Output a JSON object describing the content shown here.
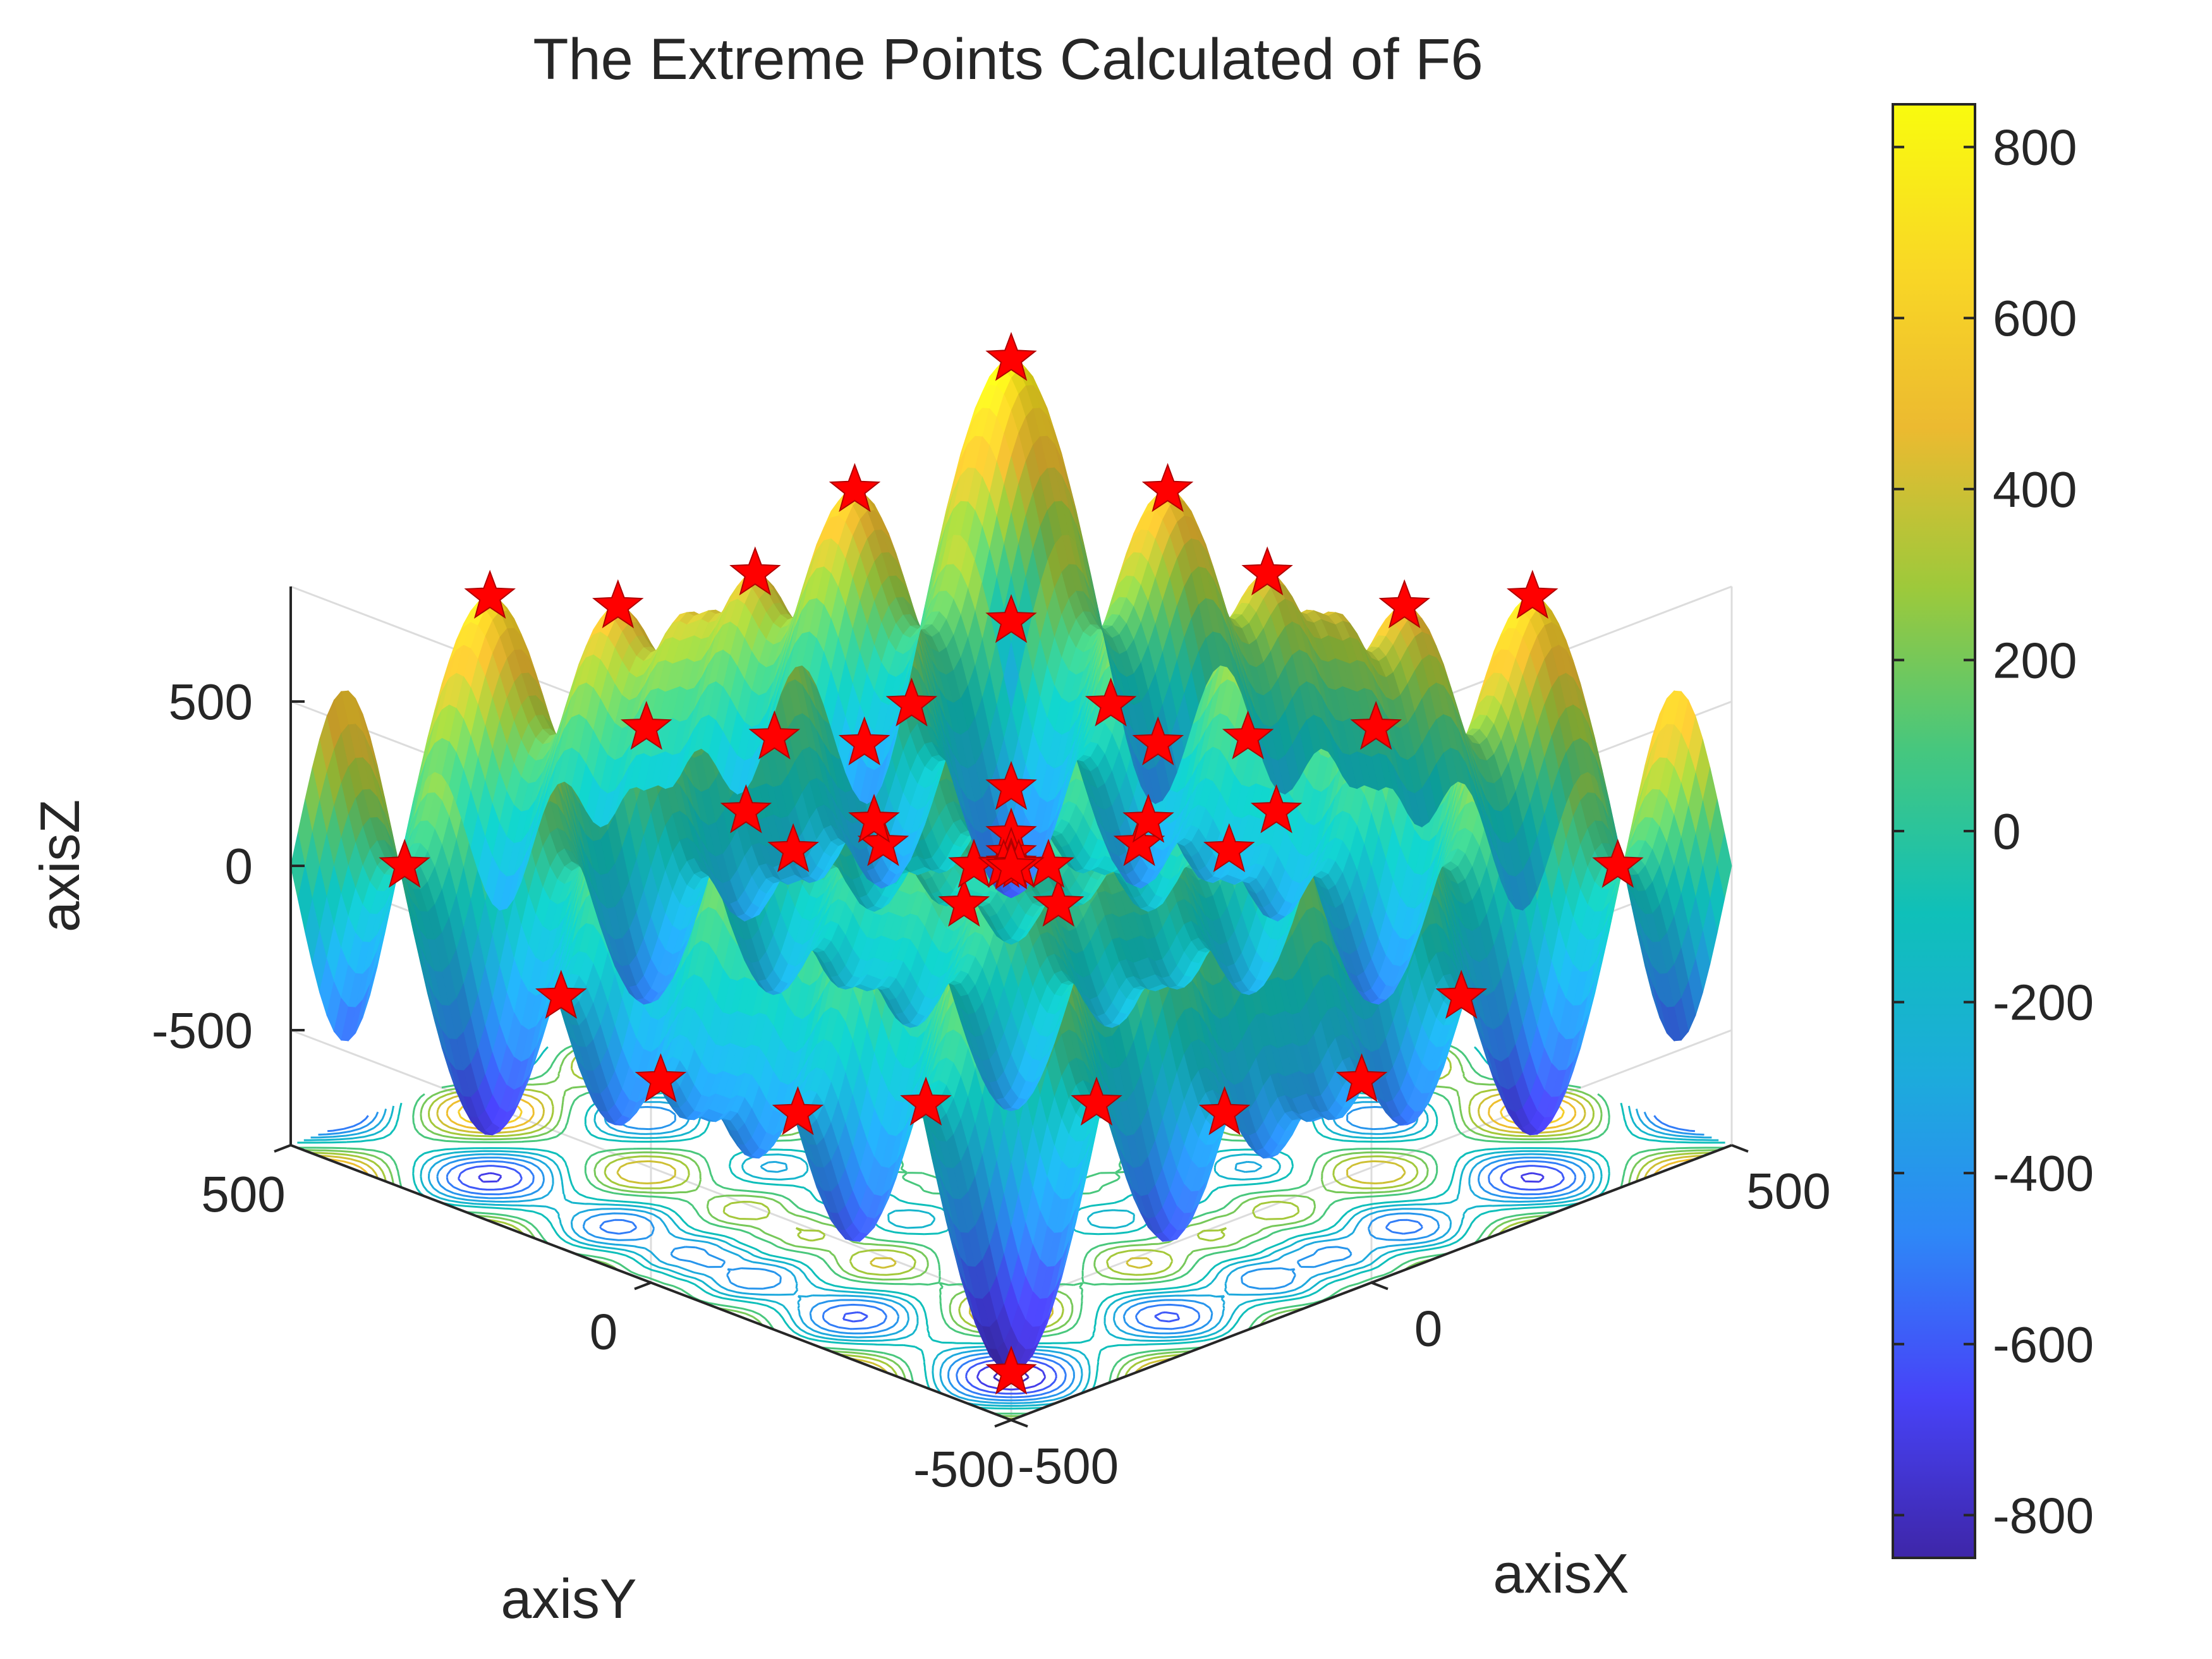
{
  "chart_data": {
    "type": "surface3d",
    "title": "The Extreme Points Calculated of F6",
    "xlabel": "axisX",
    "ylabel": "axisY",
    "zlabel": "axisZ",
    "xlim": [
      -500,
      500
    ],
    "ylim": [
      -500,
      500
    ],
    "zlim": [
      -850,
      850
    ],
    "x_ticks": [
      -500,
      0,
      500
    ],
    "y_ticks": [
      -500,
      0,
      500
    ],
    "z_ticks": [
      -500,
      0,
      500
    ],
    "x_tick_labels": [
      "-500",
      "0",
      "500"
    ],
    "y_tick_labels": [
      "-500",
      "0",
      "500"
    ],
    "z_tick_labels": [
      "-500",
      "0",
      "500"
    ],
    "colorbar": {
      "range": [
        -850,
        850
      ],
      "ticks": [
        -800,
        -600,
        -400,
        -200,
        0,
        200,
        400,
        600,
        800
      ],
      "tick_labels": [
        "-800",
        "-600",
        "-400",
        "-200",
        "0",
        "200",
        "400",
        "600",
        "800"
      ],
      "colormap": "parula",
      "colors": [
        "#3e26a8",
        "#4743f8",
        "#2e87f7",
        "#1cacdb",
        "#0fc0b9",
        "#46c77e",
        "#9dc93b",
        "#ecba30",
        "#f9d825",
        "#f9fb0e"
      ]
    },
    "surface": {
      "function": "F6 (Schwefel-type): z = x*sin(sqrt(|x|)) + y*sin(sqrt(|y|))",
      "grid": "on",
      "contour_projection": "on"
    },
    "marker": {
      "symbol": "pentagram",
      "color": "#ff0000",
      "name": "extreme-points"
    },
    "extreme_points": [
      [
        -420.97,
        -420.97
      ],
      [
        -420.97,
        -302.52
      ],
      [
        -420.97,
        -124.83
      ],
      [
        -420.97,
        65.55
      ],
      [
        -420.97,
        203.81
      ],
      [
        -420.97,
        420.97
      ],
      [
        -302.52,
        -420.97
      ],
      [
        -302.52,
        -302.52
      ],
      [
        -302.52,
        -124.83
      ],
      [
        -302.52,
        65.55
      ],
      [
        -302.52,
        203.81
      ],
      [
        -302.52,
        420.97
      ],
      [
        -124.83,
        -420.97
      ],
      [
        -124.83,
        -302.52
      ],
      [
        -124.83,
        -124.83
      ],
      [
        -124.83,
        65.55
      ],
      [
        -124.83,
        203.81
      ],
      [
        -124.83,
        420.97
      ],
      [
        -25.88,
        -25.88
      ],
      [
        -25.88,
        25.88
      ],
      [
        25.88,
        -25.88
      ],
      [
        25.88,
        25.88
      ],
      [
        65.55,
        -420.97
      ],
      [
        65.55,
        -302.52
      ],
      [
        65.55,
        -124.83
      ],
      [
        65.55,
        65.55
      ],
      [
        65.55,
        203.81
      ],
      [
        65.55,
        420.97
      ],
      [
        203.81,
        -420.97
      ],
      [
        203.81,
        -302.52
      ],
      [
        203.81,
        -124.83
      ],
      [
        203.81,
        65.55
      ],
      [
        203.81,
        203.81
      ],
      [
        203.81,
        420.97
      ],
      [
        420.97,
        -420.97
      ],
      [
        420.97,
        -302.52
      ],
      [
        420.97,
        -124.83
      ],
      [
        420.97,
        65.55
      ],
      [
        420.97,
        203.81
      ],
      [
        420.97,
        420.97
      ],
      [
        0,
        0
      ],
      [
        -5.24,
        5.24
      ],
      [
        5.24,
        -5.24
      ],
      [
        -65.55,
        0
      ],
      [
        0,
        -65.55
      ],
      [
        203.81,
        0
      ],
      [
        0,
        203.81
      ],
      [
        -302.52,
        0
      ],
      [
        0,
        -302.52
      ]
    ]
  }
}
